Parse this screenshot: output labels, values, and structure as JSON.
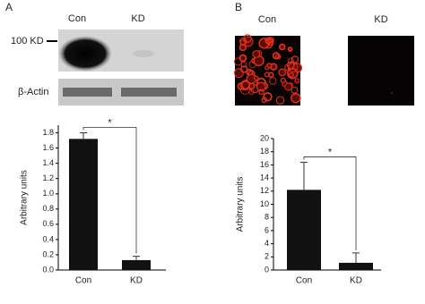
{
  "panel_a": {
    "label": "A",
    "lanes": [
      "Con",
      "KD"
    ],
    "marker": "100 KD",
    "loading": "β-Actin"
  },
  "panel_b": {
    "label": "B",
    "images": [
      "Con",
      "KD"
    ]
  },
  "chart_data": [
    {
      "type": "bar",
      "ylabel": "Arbitrary units",
      "categories": [
        "Con",
        "KD"
      ],
      "values": [
        1.72,
        0.13
      ],
      "errors": [
        0.08,
        0.05
      ],
      "color": "#111111",
      "ylim": [
        0,
        1.9
      ],
      "yticks": [
        {
          "value": 0,
          "label": "0.0"
        },
        0.2,
        0.4,
        0.6,
        0.8,
        {
          "value": 1,
          "label": "1.0"
        },
        1.2,
        1.4,
        1.6,
        1.8
      ],
      "annotation": "*"
    },
    {
      "type": "bar",
      "ylabel": "Arbitrary units",
      "categories": [
        "Con",
        "KD"
      ],
      "values": [
        12.2,
        1.1
      ],
      "errors": [
        4.2,
        1.5
      ],
      "color": "#111111",
      "ylim": [
        0,
        20
      ],
      "yticks": [
        0,
        2,
        4,
        6,
        8,
        10,
        12,
        14,
        16,
        18,
        20
      ],
      "annotation": "*"
    }
  ]
}
